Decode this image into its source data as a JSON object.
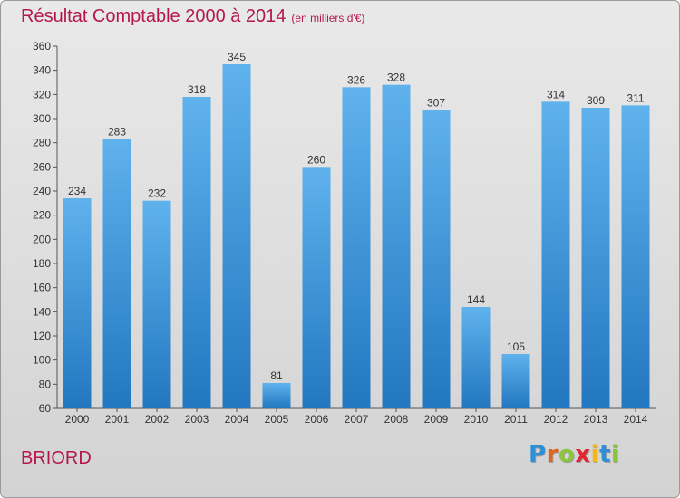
{
  "header": {
    "title": "Résultat Comptable 2000 à 2014",
    "subtitle": "(en milliers d'€)"
  },
  "footer": {
    "place": "BRIORD",
    "logo": {
      "letters": [
        "P",
        "r",
        "o",
        "x",
        "i",
        "t",
        "i"
      ],
      "colors": [
        "#2f8fd4",
        "#e2631c",
        "#8bc43f",
        "#e3262d",
        "#f3b61b",
        "#2f8fd4",
        "#8bc43f"
      ]
    }
  },
  "colors": {
    "title": "#b5174d",
    "bar_light": "#5fb2ec",
    "bar_dark": "#2277c0",
    "axis": "#555555"
  },
  "chart_data": {
    "type": "bar",
    "title": "Résultat Comptable 2000 à 2014",
    "categories": [
      "2000",
      "2001",
      "2002",
      "2003",
      "2004",
      "2005",
      "2006",
      "2007",
      "2008",
      "2009",
      "2010",
      "2011",
      "2012",
      "2013",
      "2014"
    ],
    "values": [
      234,
      283,
      232,
      318,
      345,
      81,
      260,
      326,
      328,
      307,
      144,
      105,
      314,
      309,
      311
    ],
    "ylim": [
      60,
      360
    ],
    "yticks": [
      60,
      80,
      100,
      120,
      140,
      160,
      180,
      200,
      220,
      240,
      260,
      280,
      300,
      320,
      340,
      360
    ],
    "grid": false,
    "data_labels": true
  }
}
